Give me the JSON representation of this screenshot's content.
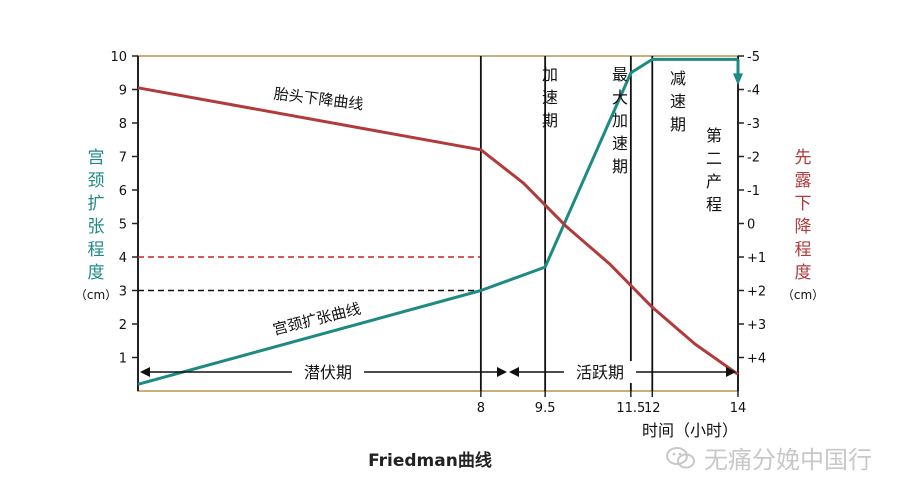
{
  "chart_data": {
    "type": "line",
    "title": "Friedman曲线",
    "xlabel": "时间（小时）",
    "ylabel_left": [
      "宫",
      "颈",
      "扩",
      "张",
      "程",
      "度"
    ],
    "ylabel_left_unit": "（cm）",
    "ylabel_right": [
      "先",
      "露",
      "下",
      "降",
      "程",
      "度"
    ],
    "ylabel_right_unit": "（cm）",
    "x_ticks": [
      "8",
      "9.5",
      "11.5",
      "12",
      "14"
    ],
    "x_tick_values": [
      8,
      9.5,
      11.5,
      12,
      14
    ],
    "xlim": [
      0,
      14
    ],
    "ylim_left": [
      0,
      10
    ],
    "y_left_ticks": [
      "1",
      "2",
      "3",
      "4",
      "5",
      "6",
      "7",
      "8",
      "9",
      "10"
    ],
    "y_right_ticks": [
      "+4",
      "+3",
      "+2",
      "+1",
      "0",
      "-1",
      "-2",
      "-3",
      "-4",
      "-5"
    ],
    "series": [
      {
        "name": "宫颈扩张曲线",
        "color": "#1e8a84",
        "x": [
          0,
          8,
          9.5,
          11.5,
          12,
          14
        ],
        "y": [
          0.2,
          3,
          3.7,
          9.5,
          9.9,
          9.9
        ]
      },
      {
        "name": "胎头下降曲线",
        "color": "#b23a3a",
        "x": [
          0,
          8,
          9,
          10,
          11,
          12,
          13,
          14
        ],
        "y": [
          9.05,
          7.2,
          6.2,
          4.9,
          3.8,
          2.5,
          1.4,
          0.5
        ]
      }
    ],
    "reference_lines": [
      {
        "y": 4,
        "color": "#cc2222",
        "style": "dashed"
      },
      {
        "y": 3,
        "color": "#111111",
        "style": "dashed"
      }
    ],
    "phase_dividers": [
      8,
      9.5,
      11.5,
      12
    ],
    "phase_labels": {
      "latent": "潜伏期",
      "active": "活跃期",
      "acceleration": [
        "加",
        "速",
        "期"
      ],
      "max_acceleration": [
        "最",
        "大",
        "加",
        "速",
        "期"
      ],
      "deceleration": [
        "减",
        "速",
        "期"
      ],
      "second_stage": [
        "第",
        "二",
        "产",
        "程"
      ]
    },
    "legend": "none",
    "grid": false
  },
  "caption": "Friedman曲线",
  "watermark": {
    "text": "无痛分娩中国行",
    "icon": "wechat-icon"
  }
}
